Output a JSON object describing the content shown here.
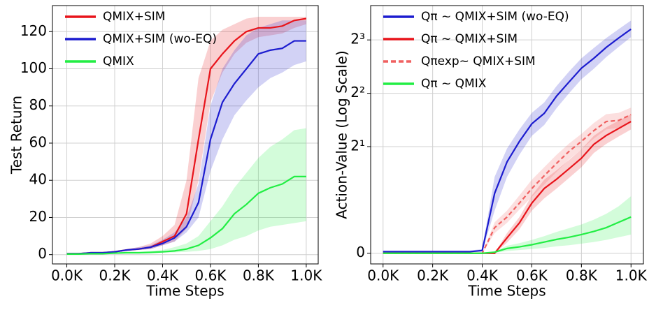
{
  "chart_data": [
    {
      "type": "line",
      "xlabel": "Time Steps",
      "ylabel": "Test Return",
      "x": [
        0,
        50,
        100,
        150,
        200,
        250,
        300,
        350,
        400,
        450,
        500,
        550,
        600,
        650,
        700,
        750,
        800,
        850,
        900,
        950,
        1000
      ],
      "xlim": [
        -60,
        1050
      ],
      "ylim": [
        -5,
        134
      ],
      "xticks": [
        {
          "value": 0,
          "label": "0.0K"
        },
        {
          "value": 200,
          "label": "0.2K"
        },
        {
          "value": 400,
          "label": "0.4K"
        },
        {
          "value": 600,
          "label": "0.6K"
        },
        {
          "value": 800,
          "label": "0.8K"
        },
        {
          "value": 1000,
          "label": "1.0K"
        }
      ],
      "yticks": [
        0,
        20,
        40,
        60,
        80,
        100,
        120
      ],
      "grid": true,
      "legend": "upper left",
      "series": [
        {
          "name": "QMIX+SIM",
          "color": "#e8141b",
          "values": [
            0.5,
            0.5,
            1,
            1,
            1.5,
            2.5,
            3,
            4,
            7,
            10,
            22,
            62,
            100,
            108,
            115,
            120,
            122,
            122,
            123,
            126,
            127
          ],
          "lower": [
            0.3,
            0.3,
            0.8,
            0.8,
            1.2,
            2,
            2.5,
            3,
            5,
            7,
            14,
            40,
            82,
            98,
            108,
            114,
            117,
            118,
            119,
            122,
            124
          ],
          "upper": [
            0.8,
            0.8,
            1.3,
            1.3,
            2,
            3,
            4,
            6,
            10,
            16,
            40,
            95,
            115,
            121,
            124,
            127,
            128,
            128,
            128,
            128,
            128
          ]
        },
        {
          "name": "QMIX+SIM (wo-EQ)",
          "color": "#1c1ccf",
          "values": [
            0.5,
            0.5,
            1,
            1,
            1.5,
            2.5,
            3,
            4,
            6,
            9,
            15,
            28,
            62,
            82,
            92,
            100,
            108,
            110,
            111,
            115,
            115
          ],
          "lower": [
            0.3,
            0.3,
            0.8,
            0.8,
            1.2,
            2,
            2.5,
            3,
            5,
            7,
            12,
            20,
            45,
            62,
            75,
            83,
            90,
            95,
            98,
            102,
            104
          ],
          "upper": [
            0.8,
            0.8,
            1.3,
            1.3,
            2,
            3,
            4,
            5,
            8,
            12,
            20,
            38,
            80,
            100,
            110,
            118,
            122,
            124,
            126,
            126,
            126
          ]
        },
        {
          "name": "QMIX",
          "color": "#22ee44",
          "values": [
            0.3,
            0.3,
            0.5,
            0.5,
            0.8,
            1,
            1,
            1.2,
            1.5,
            2,
            3,
            5,
            9,
            14,
            22,
            27,
            33,
            36,
            38,
            42,
            42
          ],
          "lower": [
            0.1,
            0.1,
            0.3,
            0.3,
            0.5,
            0.6,
            0.6,
            0.8,
            1,
            1.2,
            1.5,
            2,
            3,
            5,
            8,
            10,
            13,
            15,
            16,
            17,
            18
          ],
          "upper": [
            0.5,
            0.5,
            0.8,
            0.8,
            1.2,
            1.5,
            1.5,
            2,
            2.5,
            4,
            6,
            10,
            18,
            26,
            36,
            44,
            52,
            58,
            62,
            67,
            68
          ]
        }
      ]
    },
    {
      "type": "line",
      "xlabel": "Time Steps",
      "ylabel": "Action-Value (Log Scale)",
      "x": [
        0,
        50,
        100,
        150,
        200,
        250,
        300,
        350,
        400,
        450,
        500,
        550,
        600,
        650,
        700,
        750,
        800,
        850,
        900,
        950,
        1000
      ],
      "xlim": [
        -50,
        1050
      ],
      "ylim": [
        -0.2,
        12.5
      ],
      "yscale": "symlog",
      "symlog_base": 2,
      "linthresh": 1,
      "xticks": [
        {
          "value": 0,
          "label": "0.0K"
        },
        {
          "value": 200,
          "label": "0.2K"
        },
        {
          "value": 400,
          "label": "0.4K"
        },
        {
          "value": 600,
          "label": "0.6K"
        },
        {
          "value": 800,
          "label": "0.8K"
        },
        {
          "value": 1000,
          "label": "1.0K"
        }
      ],
      "yticks": [
        0,
        {
          "value": 2,
          "label": "2¹"
        },
        {
          "value": 4,
          "label": "2²"
        },
        {
          "value": 8,
          "label": "2³"
        }
      ],
      "grid": true,
      "legend": "upper left",
      "series": [
        {
          "name": "Qπ ~ QMIX+SIM (wo-EQ)",
          "color": "#1c1ccf",
          "values": [
            0.03,
            0.03,
            0.03,
            0.03,
            0.03,
            0.03,
            0.03,
            0.03,
            0.05,
            1.09,
            1.64,
            2.14,
            2.69,
            3.08,
            3.86,
            4.63,
            5.54,
            6.3,
            7.26,
            8.2,
            9.2
          ],
          "lower": [
            0.02,
            0.02,
            0.02,
            0.02,
            0.02,
            0.02,
            0.02,
            0.02,
            0.03,
            0.8,
            1.35,
            1.8,
            2.3,
            2.65,
            3.3,
            4.0,
            4.8,
            5.5,
            6.4,
            7.3,
            8.3
          ],
          "upper": [
            0.05,
            0.05,
            0.05,
            0.05,
            0.05,
            0.05,
            0.05,
            0.05,
            0.08,
            1.35,
            1.95,
            2.5,
            3.1,
            3.55,
            4.4,
            5.3,
            6.3,
            7.2,
            8.2,
            9.2,
            10.3
          ]
        },
        {
          "name": "Qπ ~ QMIX+SIM",
          "color": "#e8141b",
          "values": [
            0,
            0,
            0,
            0,
            0,
            0,
            0,
            0,
            0,
            0,
            0.29,
            0.57,
            0.94,
            1.16,
            1.31,
            1.5,
            1.72,
            2.06,
            2.31,
            2.53,
            2.77
          ],
          "lower": [
            0,
            0,
            0,
            0,
            0,
            0,
            0,
            0,
            0,
            0,
            0.2,
            0.45,
            0.8,
            1.02,
            1.16,
            1.33,
            1.53,
            1.84,
            2.07,
            2.28,
            2.5
          ],
          "upper": [
            0,
            0,
            0,
            0,
            0,
            0,
            0,
            0,
            0,
            0,
            0.38,
            0.68,
            1.06,
            1.3,
            1.47,
            1.68,
            1.93,
            2.3,
            2.57,
            2.8,
            3.05
          ]
        },
        {
          "name": "Qπexp~ QMIX+SIM",
          "color": "#f06060",
          "dashed": true,
          "values": [
            0,
            0,
            0,
            0,
            0,
            0,
            0,
            0,
            0,
            0.48,
            0.68,
            0.94,
            1.16,
            1.37,
            1.61,
            1.88,
            2.14,
            2.46,
            2.77,
            2.81,
            3.03
          ],
          "lower": [
            0,
            0,
            0,
            0,
            0,
            0,
            0,
            0,
            0,
            0.38,
            0.57,
            0.82,
            1.04,
            1.22,
            1.44,
            1.69,
            1.93,
            2.22,
            2.5,
            2.55,
            2.77
          ],
          "upper": [
            0,
            0,
            0,
            0,
            0,
            0,
            0,
            0,
            0,
            0.58,
            0.8,
            1.06,
            1.3,
            1.53,
            1.8,
            2.08,
            2.36,
            2.72,
            3.05,
            3.1,
            3.32
          ]
        },
        {
          "name": "Qπ ~ QMIX",
          "color": "#22ee44",
          "values": [
            0,
            0,
            0,
            0,
            0,
            0,
            0,
            0,
            0,
            0.02,
            0.09,
            0.12,
            0.16,
            0.21,
            0.26,
            0.3,
            0.35,
            0.41,
            0.48,
            0.58,
            0.68
          ],
          "lower": [
            0,
            0,
            0,
            0,
            0,
            0,
            0,
            0,
            0,
            0.01,
            0.04,
            0.06,
            0.08,
            0.1,
            0.13,
            0.15,
            0.18,
            0.21,
            0.25,
            0.3,
            0.35
          ],
          "upper": [
            0,
            0,
            0,
            0,
            0,
            0,
            0,
            0,
            0,
            0.03,
            0.14,
            0.19,
            0.25,
            0.32,
            0.4,
            0.47,
            0.54,
            0.63,
            0.74,
            0.88,
            1.05
          ]
        }
      ]
    }
  ]
}
